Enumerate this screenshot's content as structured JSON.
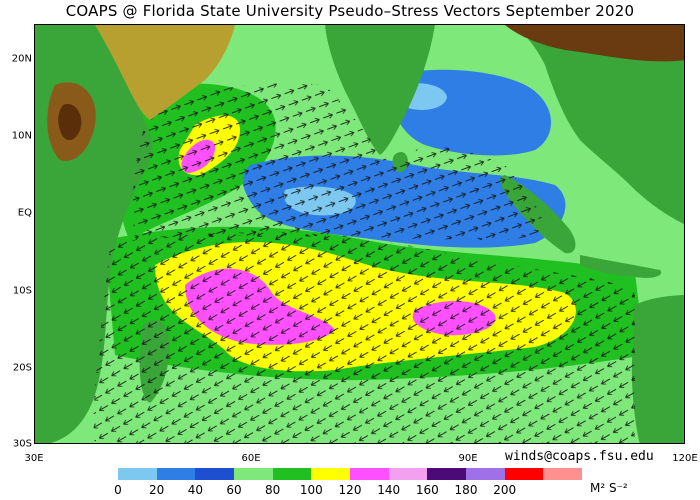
{
  "title": "COAPS @ Florida State University Pseudo–Stress Vectors September 2020",
  "credit": "winds@coaps.fsu.edu",
  "units_label": "M² S⁻²",
  "lat_labels": [
    "20N",
    "10N",
    "EQ",
    "10S",
    "20S",
    "30S"
  ],
  "lon_labels": [
    "30E",
    "60E",
    "90E",
    "120E"
  ],
  "colorbar": {
    "ticks": [
      "0",
      "20",
      "40",
      "60",
      "80",
      "100",
      "120",
      "140",
      "160",
      "180",
      "200"
    ],
    "colors": [
      "#7cc8f0",
      "#2f7ee6",
      "#1f4fd1",
      "#7ee87a",
      "#20c020",
      "#ffff00",
      "#ff50ff",
      "#f2a0f0",
      "#4b0a78",
      "#a070e8",
      "#ff0000",
      "#ff9090"
    ]
  },
  "map": {
    "region": "Indian Ocean",
    "lon_range": [
      30,
      120
    ],
    "lat_range": [
      -30,
      25
    ],
    "field": "pseudo-stress vectors",
    "period": "September 2020",
    "arrow_icon": "wind-vector-arrow-icon"
  }
}
